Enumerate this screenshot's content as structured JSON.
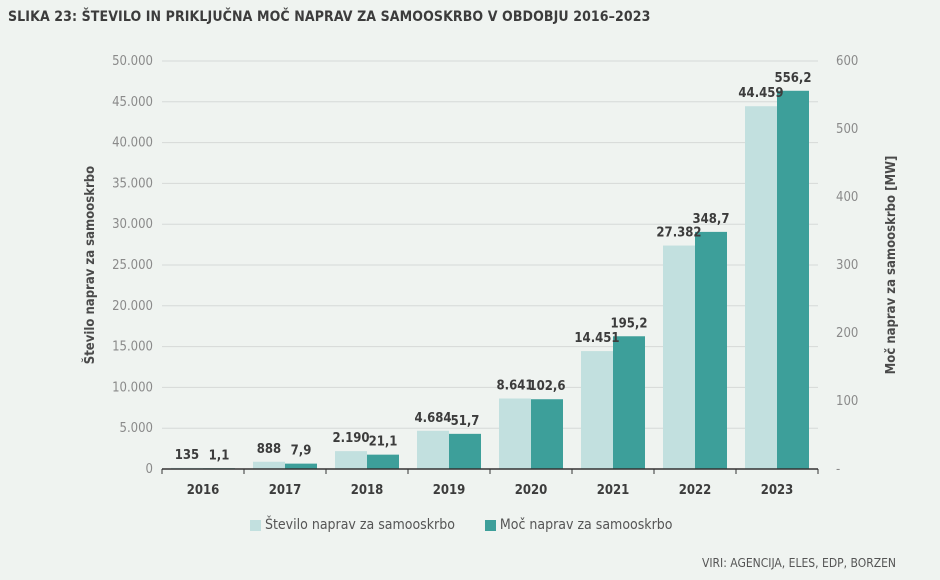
{
  "title": "SLIKA 23: ŠTEVILO IN PRIKLJUČNA MOČ NAPRAV ZA SAMOOSKRBO V OBDOBJU 2016–2023",
  "source": "VIRI: AGENCIJA, ELES, EDP, BORZEN",
  "chart_data": {
    "type": "bar",
    "title": "SLIKA 23: ŠTEVILO IN PRIKLJUČNA MOČ NAPRAV ZA SAMOOSKRBO V OBDOBJU 2016–2023",
    "categories": [
      "2016",
      "2017",
      "2018",
      "2019",
      "2020",
      "2021",
      "2022",
      "2023"
    ],
    "series": [
      {
        "name": "Število naprav za samooskrbo",
        "axis": "left",
        "color": "#c2e0df",
        "values": [
          135,
          888,
          2190,
          4684,
          8641,
          14451,
          27382,
          44459
        ],
        "labels": [
          "135",
          "888",
          "2.190",
          "4.684",
          "8.641",
          "14.451",
          "27.382",
          "44.459"
        ]
      },
      {
        "name": "Moč naprav za samooskrbo",
        "axis": "right",
        "color": "#3d9f9a",
        "values": [
          1.1,
          7.9,
          21.1,
          51.7,
          102.6,
          195.2,
          348.7,
          556.2
        ],
        "labels": [
          "1,1",
          "7,9",
          "21,1",
          "51,7",
          "102,6",
          "195,2",
          "348,7",
          "556,2"
        ]
      }
    ],
    "ylabel_left": "Število naprav za samooskrbo",
    "ylabel_right": "Moč naprav za samooskrbo  [MW]",
    "ylim_left": [
      0,
      50000
    ],
    "ylim_right": [
      0,
      600
    ],
    "yticks_left": [
      "0",
      "5.000",
      "10.000",
      "15.000",
      "20.000",
      "25.000",
      "30.000",
      "35.000",
      "40.000",
      "45.000",
      "50.000"
    ],
    "yticks_right": [
      "-",
      "100",
      "200",
      "300",
      "400",
      "500",
      "600"
    ],
    "grid": true,
    "legend": "bottom"
  }
}
